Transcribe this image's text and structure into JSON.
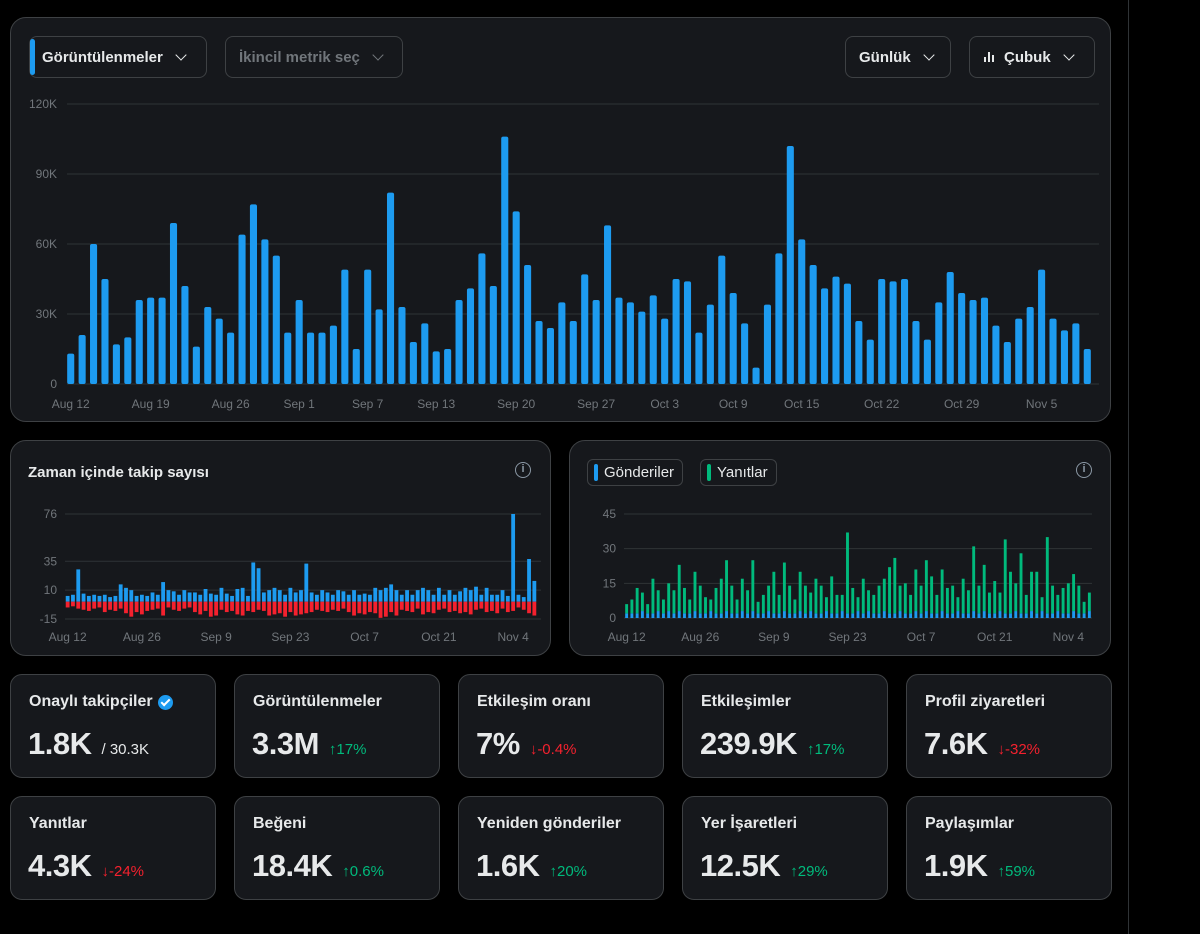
{
  "main_chart": {
    "primary_metric": "Görüntülenmeler",
    "secondary_metric_placeholder": "İkincil metrik seç",
    "period": "Günlük",
    "chart_type": "Çubuk",
    "accent_color": "#1d9bf0"
  },
  "followers_chart": {
    "title": "Zaman içinde takip sayısı",
    "info_icon": "info-icon",
    "gain_color": "#1d9bf0",
    "loss_color": "#f4212e"
  },
  "posts_chart": {
    "legend": [
      {
        "label": "Gönderiler",
        "color": "#1d9bf0"
      },
      {
        "label": "Yanıtlar",
        "color": "#00ba7c"
      }
    ],
    "info_icon": "info-icon"
  },
  "stats": [
    {
      "label": "Onaylı takipçiler",
      "value": "1.8K",
      "sub": "/ 30.3K",
      "verified": true
    },
    {
      "label": "Görüntülenmeler",
      "value": "3.3M",
      "change": "17%",
      "dir": "up"
    },
    {
      "label": "Etkileşim oranı",
      "value": "7%",
      "change": "-0.4%",
      "dir": "down"
    },
    {
      "label": "Etkileşimler",
      "value": "239.9K",
      "change": "17%",
      "dir": "up"
    },
    {
      "label": "Profil ziyaretleri",
      "value": "7.6K",
      "change": "-32%",
      "dir": "down"
    },
    {
      "label": "Yanıtlar",
      "value": "4.3K",
      "change": "-24%",
      "dir": "down"
    },
    {
      "label": "Beğeni",
      "value": "18.4K",
      "change": "0.6%",
      "dir": "up"
    },
    {
      "label": "Yeniden gönderiler",
      "value": "1.6K",
      "change": "20%",
      "dir": "up"
    },
    {
      "label": "Yer İşaretleri",
      "value": "12.5K",
      "change": "29%",
      "dir": "up"
    },
    {
      "label": "Paylaşımlar",
      "value": "1.9K",
      "change": "59%",
      "dir": "up"
    }
  ],
  "chart_data": [
    {
      "type": "bar",
      "ylim": [
        0,
        120000
      ],
      "yticks": [
        {
          "value": 0,
          "label": "0"
        },
        {
          "value": 30000,
          "label": "30K"
        },
        {
          "value": 60000,
          "label": "60K"
        },
        {
          "value": 90000,
          "label": "90K"
        },
        {
          "value": 120000,
          "label": "120K"
        }
      ],
      "xticks": [
        {
          "index": 0,
          "label": "Aug 12"
        },
        {
          "index": 7,
          "label": "Aug 19"
        },
        {
          "index": 14,
          "label": "Aug 26"
        },
        {
          "index": 20,
          "label": "Sep 1"
        },
        {
          "index": 26,
          "label": "Sep 7"
        },
        {
          "index": 32,
          "label": "Sep 13"
        },
        {
          "index": 39,
          "label": "Sep 20"
        },
        {
          "index": 46,
          "label": "Sep 27"
        },
        {
          "index": 52,
          "label": "Oct 3"
        },
        {
          "index": 58,
          "label": "Oct 9"
        },
        {
          "index": 64,
          "label": "Oct 15"
        },
        {
          "index": 71,
          "label": "Oct 22"
        },
        {
          "index": 78,
          "label": "Oct 29"
        },
        {
          "index": 85,
          "label": "Nov 5"
        }
      ],
      "values": [
        13000,
        21000,
        60000,
        45000,
        17000,
        20000,
        36000,
        37000,
        37000,
        69000,
        42000,
        16000,
        33000,
        28000,
        22000,
        64000,
        77000,
        62000,
        55000,
        22000,
        36000,
        22000,
        22000,
        25000,
        49000,
        15000,
        49000,
        32000,
        82000,
        33000,
        18000,
        26000,
        14000,
        15000,
        36000,
        41000,
        56000,
        42000,
        106000,
        74000,
        51000,
        27000,
        24000,
        35000,
        27000,
        47000,
        36000,
        68000,
        37000,
        35000,
        31000,
        38000,
        28000,
        45000,
        44000,
        22000,
        34000,
        55000,
        39000,
        26000,
        7000,
        34000,
        56000,
        102000,
        62000,
        51000,
        41000,
        46000,
        43000,
        27000,
        19000,
        45000,
        44000,
        45000,
        27000,
        19000,
        35000,
        48000,
        39000,
        36000,
        37000,
        25000,
        18000,
        28000,
        33000,
        49000,
        28000,
        23000,
        26000,
        15000
      ]
    },
    {
      "type": "bar",
      "ylim": [
        -15,
        76
      ],
      "yticks": [
        {
          "value": 76,
          "label": "76"
        },
        {
          "value": 35,
          "label": "35"
        },
        {
          "value": 10,
          "label": "10"
        },
        {
          "value": -15,
          "label": "-15"
        }
      ],
      "xticks": [
        {
          "index": 0,
          "label": "Aug 12"
        },
        {
          "index": 14,
          "label": "Aug 26"
        },
        {
          "index": 28,
          "label": "Sep 9"
        },
        {
          "index": 42,
          "label": "Sep 23"
        },
        {
          "index": 56,
          "label": "Oct 7"
        },
        {
          "index": 70,
          "label": "Oct 21"
        },
        {
          "index": 84,
          "label": "Nov 4"
        }
      ],
      "series": [
        {
          "name": "",
          "values": [
            5,
            6,
            28,
            7,
            5,
            6,
            5,
            6,
            4,
            5,
            15,
            12,
            10,
            5,
            6,
            5,
            8,
            6,
            17,
            10,
            9,
            6,
            10,
            8,
            8,
            6,
            11,
            7,
            6,
            12,
            7,
            5,
            11,
            12,
            5,
            34,
            29,
            8,
            10,
            12,
            10,
            6,
            12,
            8,
            10,
            33,
            8,
            6,
            10,
            8,
            6,
            10,
            9,
            6,
            10,
            6,
            7,
            6,
            12,
            10,
            12,
            15,
            10,
            6,
            10,
            6,
            10,
            12,
            10,
            6,
            12,
            6,
            10,
            6,
            9,
            12,
            10,
            13,
            6,
            12,
            6,
            6,
            10,
            5,
            76,
            6,
            4,
            37,
            18
          ]
        },
        {
          "name": "",
          "values": [
            -5,
            -4,
            -6,
            -7,
            -8,
            -6,
            -5,
            -9,
            -7,
            -8,
            -6,
            -10,
            -13,
            -9,
            -11,
            -8,
            -7,
            -6,
            -12,
            -5,
            -7,
            -8,
            -6,
            -5,
            -9,
            -11,
            -8,
            -13,
            -12,
            -7,
            -9,
            -8,
            -11,
            -12,
            -8,
            -9,
            -7,
            -8,
            -12,
            -11,
            -10,
            -13,
            -9,
            -12,
            -11,
            -10,
            -9,
            -7,
            -8,
            -9,
            -7,
            -8,
            -6,
            -9,
            -12,
            -10,
            -11,
            -9,
            -10,
            -14,
            -13,
            -9,
            -12,
            -7,
            -8,
            -9,
            -6,
            -11,
            -9,
            -10,
            -7,
            -6,
            -9,
            -8,
            -10,
            -9,
            -11,
            -7,
            -6,
            -9,
            -8,
            -10,
            -6,
            -9,
            -8,
            -5,
            -7,
            -10,
            -12
          ]
        }
      ]
    },
    {
      "type": "bar",
      "ylim": [
        0,
        45
      ],
      "yticks": [
        {
          "value": 0,
          "label": "0"
        },
        {
          "value": 15,
          "label": "15"
        },
        {
          "value": 30,
          "label": "30"
        },
        {
          "value": 45,
          "label": "45"
        }
      ],
      "xticks": [
        {
          "index": 0,
          "label": "Aug 12"
        },
        {
          "index": 14,
          "label": "Aug 26"
        },
        {
          "index": 28,
          "label": "Sep 9"
        },
        {
          "index": 42,
          "label": "Sep 23"
        },
        {
          "index": 56,
          "label": "Oct 7"
        },
        {
          "index": 70,
          "label": "Oct 21"
        },
        {
          "index": 84,
          "label": "Nov 4"
        }
      ],
      "series": [
        {
          "name": "Gönderiler",
          "values": [
            2,
            2,
            2,
            3,
            2,
            2,
            3,
            2,
            3,
            2,
            3,
            2,
            2,
            3,
            2,
            2,
            3,
            2,
            2,
            3,
            2,
            2,
            3,
            2,
            3,
            2,
            2,
            3,
            2,
            2,
            3,
            2,
            2,
            3,
            2,
            3,
            2,
            2,
            3,
            2,
            2,
            3,
            2,
            2,
            3,
            2,
            3,
            2,
            2,
            3,
            2,
            2,
            3,
            2,
            2,
            3,
            2,
            3,
            2,
            2,
            3,
            2,
            2,
            3,
            2,
            2,
            3,
            2,
            3,
            2,
            2,
            3,
            2,
            2,
            3,
            2,
            2,
            3,
            2,
            3,
            2,
            2,
            3,
            2,
            2,
            3,
            2,
            2,
            3
          ]
        },
        {
          "name": "Yanıtlar",
          "values": [
            4,
            6,
            11,
            8,
            4,
            15,
            9,
            6,
            12,
            10,
            20,
            11,
            6,
            17,
            12,
            7,
            5,
            11,
            15,
            22,
            12,
            6,
            14,
            10,
            22,
            5,
            8,
            11,
            18,
            8,
            21,
            12,
            6,
            17,
            12,
            8,
            15,
            12,
            6,
            16,
            8,
            7,
            35,
            11,
            6,
            15,
            9,
            8,
            12,
            14,
            20,
            24,
            11,
            13,
            8,
            18,
            12,
            22,
            16,
            8,
            18,
            11,
            12,
            6,
            15,
            10,
            28,
            12,
            20,
            9,
            14,
            8,
            32,
            18,
            12,
            26,
            8,
            17,
            18,
            6,
            33,
            12,
            7,
            11,
            13,
            16,
            12,
            5,
            8
          ]
        }
      ]
    }
  ]
}
